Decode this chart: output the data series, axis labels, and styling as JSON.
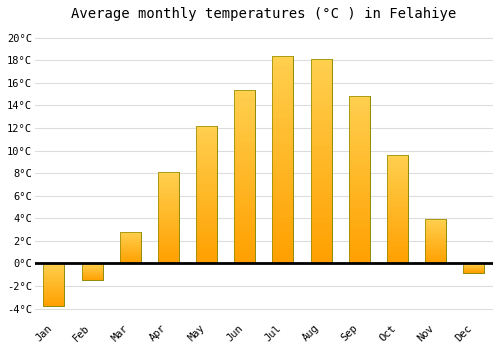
{
  "title": "Average monthly temperatures (°C ) in Felahiye",
  "months": [
    "Jan",
    "Feb",
    "Mar",
    "Apr",
    "May",
    "Jun",
    "Jul",
    "Aug",
    "Sep",
    "Oct",
    "Nov",
    "Dec"
  ],
  "values": [
    -3.8,
    -1.5,
    2.8,
    8.1,
    12.2,
    15.4,
    18.4,
    18.1,
    14.8,
    9.6,
    3.9,
    -0.8
  ],
  "bar_color_top": "#FFD050",
  "bar_color_bottom": "#FFA000",
  "bar_edge_color": "#888800",
  "background_color": "#FFFFFF",
  "grid_color": "#DDDDDD",
  "ylim": [
    -5,
    21
  ],
  "yticks": [
    -4,
    -2,
    0,
    2,
    4,
    6,
    8,
    10,
    12,
    14,
    16,
    18,
    20
  ],
  "ytick_labels": [
    "-4°C",
    "-2°C",
    "0°C",
    "2°C",
    "4°C",
    "6°C",
    "8°C",
    "10°C",
    "12°C",
    "14°C",
    "16°C",
    "18°C",
    "20°C"
  ],
  "title_fontsize": 10,
  "tick_fontsize": 7.5,
  "font_family": "monospace",
  "bar_width": 0.55
}
